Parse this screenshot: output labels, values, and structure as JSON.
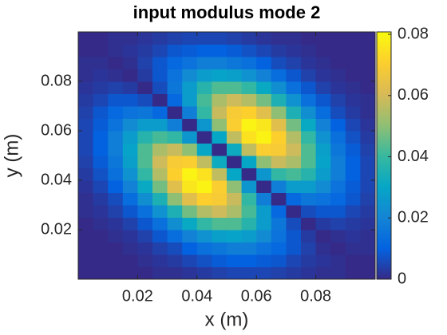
{
  "chart_data": {
    "type": "heatmap",
    "title": "input modulus mode 2",
    "x_label": "x (m)",
    "y_label": "y (m)",
    "x": [
      0.0025,
      0.0075,
      0.0125,
      0.0175,
      0.0225,
      0.0275,
      0.0325,
      0.0375,
      0.0425,
      0.0475,
      0.0525,
      0.0575,
      0.0625,
      0.0675,
      0.0725,
      0.0775,
      0.0825,
      0.0875,
      0.0925,
      0.0975
    ],
    "y": [
      0.0025,
      0.0075,
      0.0125,
      0.0175,
      0.0225,
      0.0275,
      0.0325,
      0.0375,
      0.0425,
      0.0475,
      0.0525,
      0.0575,
      0.0625,
      0.0675,
      0.0725,
      0.0775,
      0.0825,
      0.0875,
      0.0925,
      0.0975
    ],
    "z": [
      [
        0,
        0,
        0,
        0,
        0,
        0.001,
        0.001,
        0.002,
        0.003,
        0.004,
        0.005,
        0.005,
        0.005,
        0.004,
        0.003,
        0.002,
        0.001,
        0.001,
        0,
        0
      ],
      [
        0,
        0,
        0,
        0,
        0.001,
        0.002,
        0.003,
        0.005,
        0.007,
        0.009,
        0.01,
        0.01,
        0.009,
        0.008,
        0.005,
        0.003,
        0.002,
        0.001,
        0,
        0
      ],
      [
        0,
        0,
        0,
        0.001,
        0.002,
        0.004,
        0.006,
        0.01,
        0.014,
        0.016,
        0.018,
        0.018,
        0.015,
        0.012,
        0.008,
        0.004,
        0.001,
        0,
        0.001,
        0.001
      ],
      [
        0,
        0,
        0.001,
        0.002,
        0.004,
        0.008,
        0.013,
        0.019,
        0.024,
        0.028,
        0.029,
        0.027,
        0.022,
        0.015,
        0.008,
        0.003,
        0,
        0.001,
        0.002,
        0.001
      ],
      [
        0,
        0.001,
        0.002,
        0.004,
        0.008,
        0.014,
        0.023,
        0.031,
        0.039,
        0.043,
        0.043,
        0.037,
        0.027,
        0.016,
        0.006,
        0,
        0.003,
        0.004,
        0.003,
        0.002
      ],
      [
        0.001,
        0.002,
        0.004,
        0.008,
        0.014,
        0.024,
        0.035,
        0.047,
        0.055,
        0.059,
        0.054,
        0.042,
        0.027,
        0.012,
        0,
        0.006,
        0.008,
        0.008,
        0.005,
        0.003
      ],
      [
        0.001,
        0.003,
        0.006,
        0.013,
        0.023,
        0.035,
        0.05,
        0.063,
        0.071,
        0.069,
        0.058,
        0.039,
        0.018,
        0,
        0.012,
        0.016,
        0.015,
        0.012,
        0.008,
        0.004
      ],
      [
        0.002,
        0.005,
        0.01,
        0.019,
        0.031,
        0.047,
        0.063,
        0.076,
        0.079,
        0.07,
        0.05,
        0.025,
        0,
        0.018,
        0.027,
        0.027,
        0.022,
        0.015,
        0.009,
        0.005
      ],
      [
        0.003,
        0.007,
        0.014,
        0.024,
        0.039,
        0.055,
        0.071,
        0.079,
        0.075,
        0.057,
        0.03,
        0,
        0.025,
        0.039,
        0.042,
        0.037,
        0.027,
        0.018,
        0.01,
        0.005
      ],
      [
        0.004,
        0.009,
        0.016,
        0.028,
        0.043,
        0.059,
        0.069,
        0.07,
        0.057,
        0.032,
        0,
        0.03,
        0.05,
        0.058,
        0.054,
        0.043,
        0.029,
        0.018,
        0.01,
        0.005
      ],
      [
        0.005,
        0.01,
        0.018,
        0.029,
        0.043,
        0.054,
        0.058,
        0.05,
        0.03,
        0,
        0.032,
        0.057,
        0.07,
        0.069,
        0.059,
        0.043,
        0.028,
        0.016,
        0.009,
        0.004
      ],
      [
        0.005,
        0.01,
        0.018,
        0.027,
        0.037,
        0.042,
        0.039,
        0.025,
        0,
        0.03,
        0.057,
        0.075,
        0.079,
        0.071,
        0.055,
        0.039,
        0.024,
        0.014,
        0.007,
        0.003
      ],
      [
        0.005,
        0.009,
        0.015,
        0.022,
        0.027,
        0.027,
        0.018,
        0,
        0.025,
        0.05,
        0.07,
        0.079,
        0.076,
        0.063,
        0.047,
        0.031,
        0.019,
        0.01,
        0.005,
        0.002
      ],
      [
        0.004,
        0.008,
        0.012,
        0.015,
        0.016,
        0.012,
        0,
        0.018,
        0.039,
        0.058,
        0.069,
        0.071,
        0.063,
        0.05,
        0.035,
        0.023,
        0.013,
        0.006,
        0.003,
        0.001
      ],
      [
        0.003,
        0.005,
        0.008,
        0.008,
        0.006,
        0,
        0.012,
        0.027,
        0.042,
        0.054,
        0.059,
        0.055,
        0.047,
        0.035,
        0.024,
        0.014,
        0.008,
        0.004,
        0.002,
        0.001
      ],
      [
        0.002,
        0.003,
        0.004,
        0.003,
        0,
        0.006,
        0.016,
        0.027,
        0.037,
        0.043,
        0.043,
        0.039,
        0.031,
        0.023,
        0.014,
        0.008,
        0.004,
        0.002,
        0.001,
        0
      ],
      [
        0.001,
        0.002,
        0.001,
        0,
        0.003,
        0.008,
        0.015,
        0.022,
        0.027,
        0.029,
        0.028,
        0.024,
        0.019,
        0.013,
        0.008,
        0.004,
        0.002,
        0.001,
        0,
        0
      ],
      [
        0.001,
        0.001,
        0,
        0.001,
        0.004,
        0.008,
        0.012,
        0.015,
        0.018,
        0.018,
        0.016,
        0.014,
        0.01,
        0.006,
        0.004,
        0.002,
        0.001,
        0,
        0,
        0
      ],
      [
        0,
        0,
        0.001,
        0.002,
        0.003,
        0.005,
        0.008,
        0.009,
        0.01,
        0.01,
        0.009,
        0.007,
        0.005,
        0.003,
        0.002,
        0.001,
        0,
        0,
        0,
        0
      ],
      [
        0,
        0,
        0.001,
        0.001,
        0.002,
        0.003,
        0.004,
        0.005,
        0.005,
        0.005,
        0.004,
        0.003,
        0.002,
        0.001,
        0.001,
        0,
        0,
        0,
        0,
        0
      ]
    ],
    "xlim": [
      0,
      0.1
    ],
    "ylim": [
      0,
      0.1
    ],
    "xticks": [
      0.02,
      0.04,
      0.06,
      0.08
    ],
    "yticks": [
      0.02,
      0.04,
      0.06,
      0.08
    ],
    "clim": [
      0,
      0.0808
    ],
    "cticks": [
      0,
      0.02,
      0.04,
      0.06,
      0.08
    ],
    "colormap": [
      "#352a87",
      "#0363e1",
      "#1485d4",
      "#06a7c6",
      "#38b99e",
      "#92bf73",
      "#d9ba56",
      "#fcce2e",
      "#f9fb0e"
    ]
  }
}
